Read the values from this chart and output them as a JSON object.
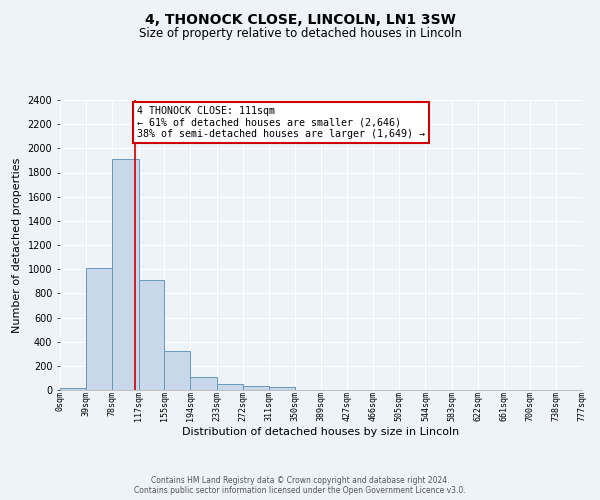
{
  "title": "4, THONOCK CLOSE, LINCOLN, LN1 3SW",
  "subtitle": "Size of property relative to detached houses in Lincoln",
  "xlabel": "Distribution of detached houses by size in Lincoln",
  "ylabel": "Number of detached properties",
  "bar_edges": [
    0,
    39,
    78,
    117,
    155,
    194,
    233,
    272,
    311,
    350,
    389,
    427,
    466,
    505,
    544,
    583,
    622,
    661,
    700,
    738,
    777
  ],
  "bar_heights": [
    20,
    1010,
    1910,
    910,
    320,
    110,
    50,
    30,
    25,
    0,
    0,
    0,
    0,
    0,
    0,
    0,
    0,
    0,
    0,
    0
  ],
  "bar_color": "#c8d8ea",
  "bar_edge_color": "#6699bb",
  "vline_x": 111,
  "vline_color": "#cc0000",
  "ylim": [
    0,
    2400
  ],
  "yticks": [
    0,
    200,
    400,
    600,
    800,
    1000,
    1200,
    1400,
    1600,
    1800,
    2000,
    2200,
    2400
  ],
  "xtick_labels": [
    "0sqm",
    "39sqm",
    "78sqm",
    "117sqm",
    "155sqm",
    "194sqm",
    "233sqm",
    "272sqm",
    "311sqm",
    "350sqm",
    "389sqm",
    "427sqm",
    "466sqm",
    "505sqm",
    "544sqm",
    "583sqm",
    "622sqm",
    "661sqm",
    "700sqm",
    "738sqm",
    "777sqm"
  ],
  "annotation_text": "4 THONOCK CLOSE: 111sqm\n← 61% of detached houses are smaller (2,646)\n38% of semi-detached houses are larger (1,649) →",
  "annotation_box_color": "#ffffff",
  "annotation_box_edge_color": "#cc0000",
  "footer_text": "Contains HM Land Registry data © Crown copyright and database right 2024.\nContains public sector information licensed under the Open Government Licence v3.0.",
  "bg_color": "#eef3f8",
  "grid_color": "#ffffff",
  "title_fontsize": 10,
  "subtitle_fontsize": 8.5,
  "xlabel_fontsize": 8,
  "ylabel_fontsize": 8,
  "footer_fontsize": 5.5
}
